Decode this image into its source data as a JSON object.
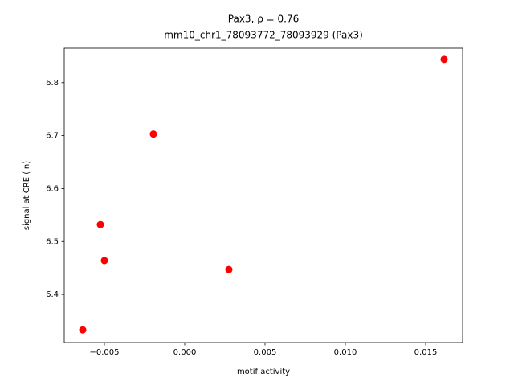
{
  "chart_data": {
    "type": "scatter",
    "title": "Pax3, ρ = 0.76",
    "subtitle": "mm10_chr1_78093772_78093929 (Pax3)",
    "x_label": "motif activity",
    "y_label": "signal at CRE (ln)",
    "color": "#ff0000",
    "x": [
      -0.00635,
      -0.00525,
      -0.005,
      -0.00195,
      0.00275,
      0.01615
    ],
    "values": [
      6.333,
      6.532,
      6.464,
      6.703,
      6.447,
      6.844
    ],
    "xlim": [
      -0.0075,
      0.0173
    ],
    "ylim": [
      6.309,
      6.865
    ],
    "xticks": [
      {
        "value": -0.005,
        "label": "−0.005"
      },
      {
        "value": 0,
        "label": "0.000"
      },
      0.005,
      {
        "value": 0.01,
        "label": "0.010"
      },
      0.015
    ],
    "yticks": [
      6.4,
      6.5,
      6.6,
      6.7,
      6.8
    ]
  }
}
